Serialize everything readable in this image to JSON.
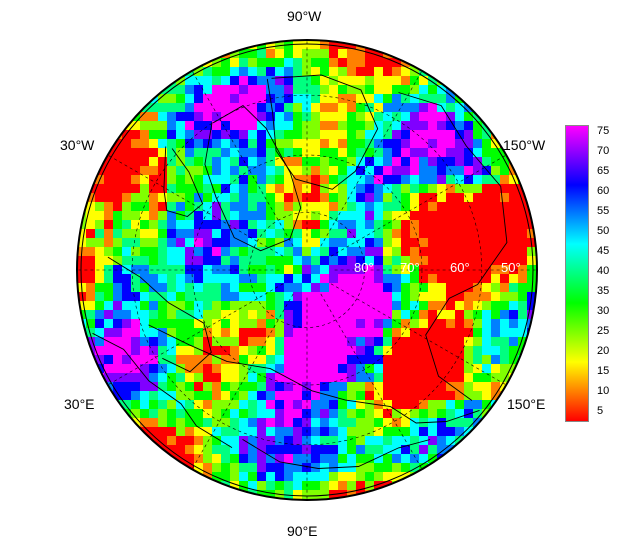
{
  "map": {
    "projection": "north polar stereographic",
    "longitude_labels": {
      "top": "90°W",
      "upper_left": "30°W",
      "upper_right": "150°W",
      "lower_left": "30°E",
      "lower_right": "150°E",
      "bottom": "90°E"
    },
    "latitude_labels": [
      "80°",
      "70°",
      "60°",
      "50°"
    ],
    "colors": {
      "ocean_frame": "#000000",
      "coastline": "#000000",
      "graticule": "#000000",
      "lat_label": "#ffffff"
    }
  },
  "colorbar": {
    "ticks": [
      "75",
      "70",
      "65",
      "60",
      "55",
      "50",
      "45",
      "40",
      "35",
      "30",
      "25",
      "20",
      "15",
      "10",
      "5"
    ],
    "range": [
      0,
      78
    ],
    "palette": [
      "#ff0000",
      "#ff8000",
      "#ffff00",
      "#80ff00",
      "#00ff00",
      "#00ff80",
      "#00ffff",
      "#0080ff",
      "#0000ff",
      "#8000ff",
      "#ff00ff"
    ]
  }
}
